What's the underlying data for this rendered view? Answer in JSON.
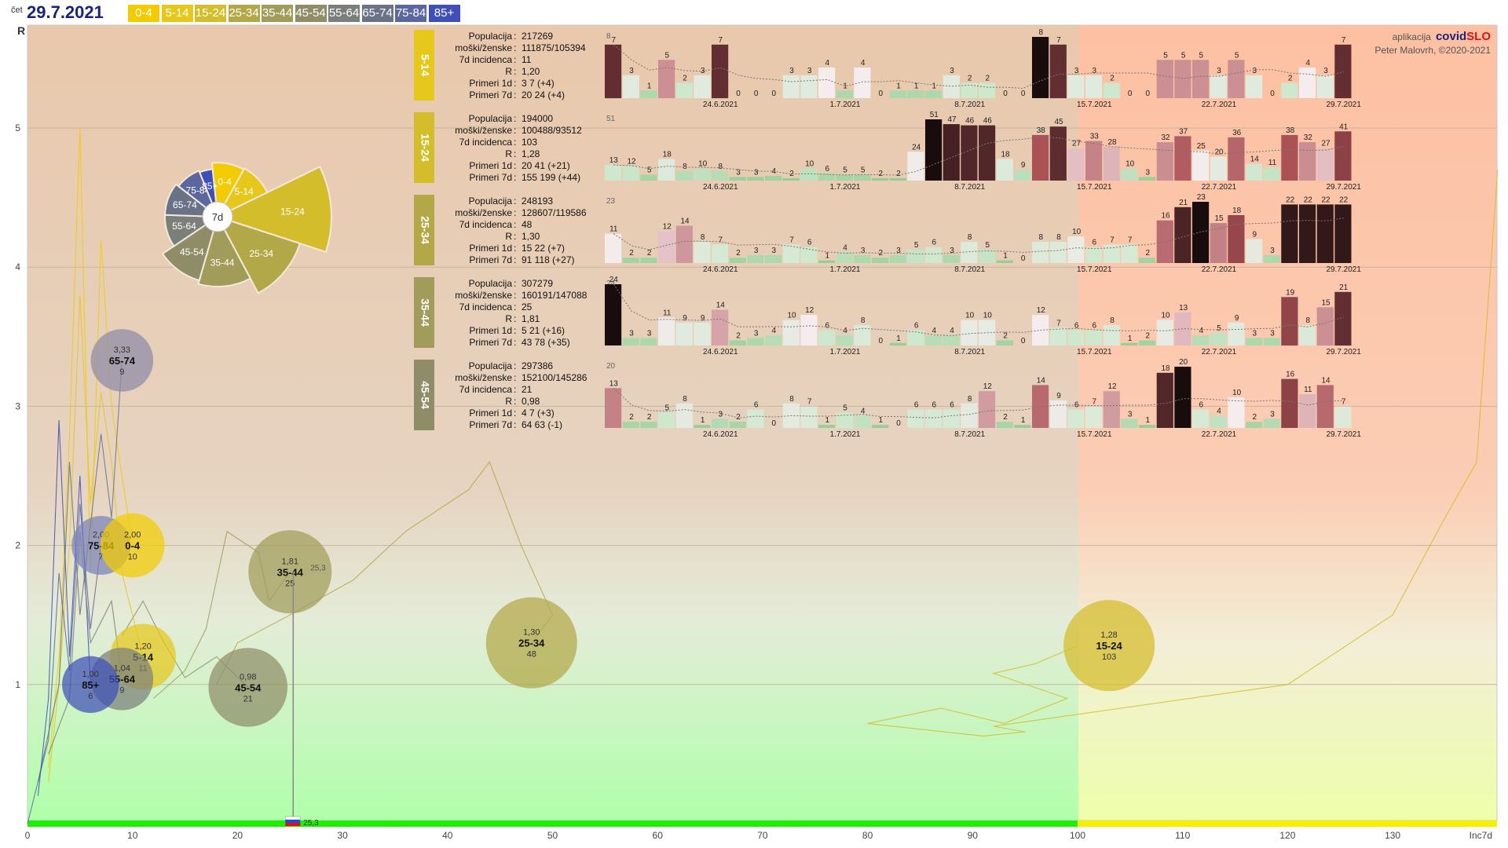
{
  "header": {
    "day": "čet",
    "date": "29.7.2021",
    "age_groups": [
      {
        "label": "0-4",
        "color": "#f2cc00"
      },
      {
        "label": "5-14",
        "color": "#e6c81c"
      },
      {
        "label": "15-24",
        "color": "#d4bd2a"
      },
      {
        "label": "25-34",
        "color": "#b3a848"
      },
      {
        "label": "35-44",
        "color": "#a19c5a"
      },
      {
        "label": "45-54",
        "color": "#8f8d68"
      },
      {
        "label": "55-64",
        "color": "#7b7f7a"
      },
      {
        "label": "65-74",
        "color": "#6a7288"
      },
      {
        "label": "75-84",
        "color": "#5c67a0"
      },
      {
        "label": "85+",
        "color": "#3f4fb8"
      }
    ]
  },
  "credit": {
    "prefix": "aplikacija",
    "app_a": "covid",
    "app_b": "SLO",
    "author": "Peter Malovrh, ©2020-2021"
  },
  "chart_data": [
    {
      "type": "scatter",
      "title": "",
      "xlabel": "Inc7d",
      "ylabel": "R",
      "xlim": [
        0,
        140
      ],
      "ylim": [
        0,
        5.5
      ],
      "xticks": [
        0,
        10,
        20,
        30,
        40,
        50,
        60,
        70,
        80,
        90,
        100,
        110,
        120,
        130
      ],
      "yticks": [
        1,
        2,
        3,
        4,
        5
      ],
      "threshold_x": 100,
      "bubbles": [
        {
          "label": "65-74",
          "r_label": "3,33",
          "inc_label": "9",
          "x": 9,
          "y": 3.33,
          "color": "#8e8aa6"
        },
        {
          "label": "75-84",
          "r_label": "2,00",
          "inc_label": "7",
          "x": 7,
          "y": 2.0,
          "color": "#7c82ba"
        },
        {
          "label": "0-4",
          "r_label": "2,00",
          "inc_label": "10",
          "x": 10,
          "y": 2.0,
          "color": "#f2cc00"
        },
        {
          "label": "35-44",
          "r_label": "1,81",
          "inc_label": "25",
          "x": 25,
          "y": 1.81,
          "color": "#a19c5a"
        },
        {
          "label": "5-14",
          "r_label": "1,20",
          "inc_label": "11",
          "x": 11,
          "y": 1.2,
          "color": "#e6c81c"
        },
        {
          "label": "55-64",
          "r_label": "1,04",
          "inc_label": "9",
          "x": 9,
          "y": 1.04,
          "color": "#7b7f7a"
        },
        {
          "label": "85+",
          "r_label": "1,00",
          "inc_label": "6",
          "x": 6,
          "y": 1.0,
          "color": "#3f4fb8"
        },
        {
          "label": "45-54",
          "r_label": "0,98",
          "inc_label": "21",
          "x": 21,
          "y": 0.98,
          "color": "#8f8d68"
        },
        {
          "label": "25-34",
          "r_label": "1,30",
          "inc_label": "48",
          "x": 48,
          "y": 1.3,
          "color": "#b3a848"
        },
        {
          "label": "15-24",
          "r_label": "1,28",
          "inc_label": "103",
          "x": 103,
          "y": 1.28,
          "color": "#d4bd2a"
        }
      ],
      "country_marker": {
        "x": 25.3,
        "label": "25,3",
        "mid_label": "25,3"
      }
    },
    {
      "type": "pie",
      "center_label": "7d",
      "slices": [
        {
          "label": "0-4",
          "value": 10,
          "color": "#f2cc00"
        },
        {
          "label": "5-14",
          "value": 11,
          "color": "#e6c81c"
        },
        {
          "label": "15-24",
          "value": 103,
          "color": "#d4bd2a"
        },
        {
          "label": "25-34",
          "value": 48,
          "color": "#b3a848"
        },
        {
          "label": "35-44",
          "value": 25,
          "color": "#a19c5a"
        },
        {
          "label": "45-54",
          "value": 21,
          "color": "#8f8d68"
        },
        {
          "label": "55-64",
          "value": 9,
          "color": "#7b7f7a"
        },
        {
          "label": "65-74",
          "value": 9,
          "color": "#6a7288"
        },
        {
          "label": "75-84",
          "value": 7,
          "color": "#5c67a0"
        },
        {
          "label": "85+",
          "value": 6,
          "color": "#3f4fb8"
        }
      ]
    }
  ],
  "panels": [
    {
      "label": "5-14",
      "color": "#e6c81c",
      "rows": [
        [
          "Populacija",
          "217269"
        ],
        [
          "moški/ženske",
          "111875/105394"
        ],
        [
          "7d incidenca",
          "11"
        ],
        [
          "R",
          "1,20"
        ],
        [
          "Primeri 1d",
          "3 7 (+4)"
        ],
        [
          "Primeri 7d",
          "20 24 (+4)"
        ]
      ],
      "max": 8,
      "values": [
        7,
        3,
        1,
        5,
        2,
        3,
        7,
        0,
        0,
        0,
        3,
        3,
        4,
        1,
        4,
        0,
        1,
        1,
        1,
        3,
        2,
        2,
        0,
        0,
        8,
        7,
        3,
        3,
        2,
        0,
        0,
        5,
        5,
        5,
        3,
        5,
        3,
        0,
        2,
        4,
        3,
        7
      ]
    },
    {
      "label": "15-24",
      "color": "#d4bd2a",
      "rows": [
        [
          "Populacija",
          "194000"
        ],
        [
          "moški/ženske",
          "100488/93512"
        ],
        [
          "7d incidenca",
          "103"
        ],
        [
          "R",
          "1,28"
        ],
        [
          "Primeri 1d",
          "20 41 (+21)"
        ],
        [
          "Primeri 7d",
          "155 199 (+44)"
        ]
      ],
      "max": 51,
      "values": [
        13,
        12,
        5,
        18,
        8,
        10,
        8,
        3,
        3,
        4,
        2,
        10,
        6,
        5,
        5,
        2,
        2,
        24,
        51,
        47,
        46,
        46,
        18,
        9,
        38,
        45,
        27,
        33,
        28,
        10,
        3,
        32,
        37,
        25,
        20,
        36,
        14,
        11,
        38,
        32,
        27,
        41
      ]
    },
    {
      "label": "25-34",
      "color": "#b3a848",
      "rows": [
        [
          "Populacija",
          "248193"
        ],
        [
          "moški/ženske",
          "128607/119586"
        ],
        [
          "7d incidenca",
          "48"
        ],
        [
          "R",
          "1,30"
        ],
        [
          "Primeri 1d",
          "15 22 (+7)"
        ],
        [
          "Primeri 7d",
          "91 118 (+27)"
        ]
      ],
      "max": 23,
      "values": [
        11,
        2,
        2,
        12,
        14,
        8,
        7,
        2,
        3,
        3,
        7,
        6,
        1,
        4,
        3,
        2,
        3,
        5,
        6,
        3,
        8,
        5,
        1,
        0,
        8,
        8,
        10,
        6,
        7,
        7,
        2,
        16,
        21,
        23,
        15,
        18,
        9,
        3,
        22,
        22,
        22,
        22
      ]
    },
    {
      "label": "35-44",
      "color": "#a19c5a",
      "rows": [
        [
          "Populacija",
          "307279"
        ],
        [
          "moški/ženske",
          "160191/147088"
        ],
        [
          "7d incidenca",
          "25"
        ],
        [
          "R",
          "1,81"
        ],
        [
          "Primeri 1d",
          "5 21 (+16)"
        ],
        [
          "Primeri 7d",
          "43 78 (+35)"
        ]
      ],
      "max": 24,
      "values": [
        24,
        3,
        3,
        11,
        9,
        9,
        14,
        2,
        3,
        4,
        10,
        12,
        6,
        4,
        8,
        0,
        1,
        6,
        4,
        4,
        10,
        10,
        2,
        0,
        12,
        7,
        6,
        6,
        8,
        1,
        2,
        10,
        13,
        4,
        5,
        9,
        3,
        3,
        19,
        8,
        15,
        21
      ]
    },
    {
      "label": "45-54",
      "color": "#8f8d68",
      "rows": [
        [
          "Populacija",
          "297386"
        ],
        [
          "moški/ženske",
          "152100/145286"
        ],
        [
          "7d incidenca",
          "21"
        ],
        [
          "R",
          "0,98"
        ],
        [
          "Primeri 1d",
          "4 7 (+3)"
        ],
        [
          "Primeri 7d",
          "64 63 (-1)"
        ]
      ],
      "max": 20,
      "values": [
        13,
        2,
        2,
        5,
        8,
        1,
        3,
        2,
        6,
        0,
        8,
        7,
        1,
        5,
        4,
        1,
        0,
        6,
        6,
        6,
        8,
        12,
        2,
        1,
        14,
        9,
        6,
        7,
        12,
        3,
        1,
        18,
        20,
        6,
        4,
        10,
        2,
        3,
        16,
        11,
        14,
        7
      ]
    }
  ],
  "panel_dates": [
    {
      "label": "24.6.2021",
      "index": 6
    },
    {
      "label": "1.7.2021",
      "index": 13
    },
    {
      "label": "8.7.2021",
      "index": 20
    },
    {
      "label": "15.7.2021",
      "index": 27
    },
    {
      "label": "22.7.2021",
      "index": 34
    },
    {
      "label": "29.7.2021",
      "index": 41
    }
  ]
}
